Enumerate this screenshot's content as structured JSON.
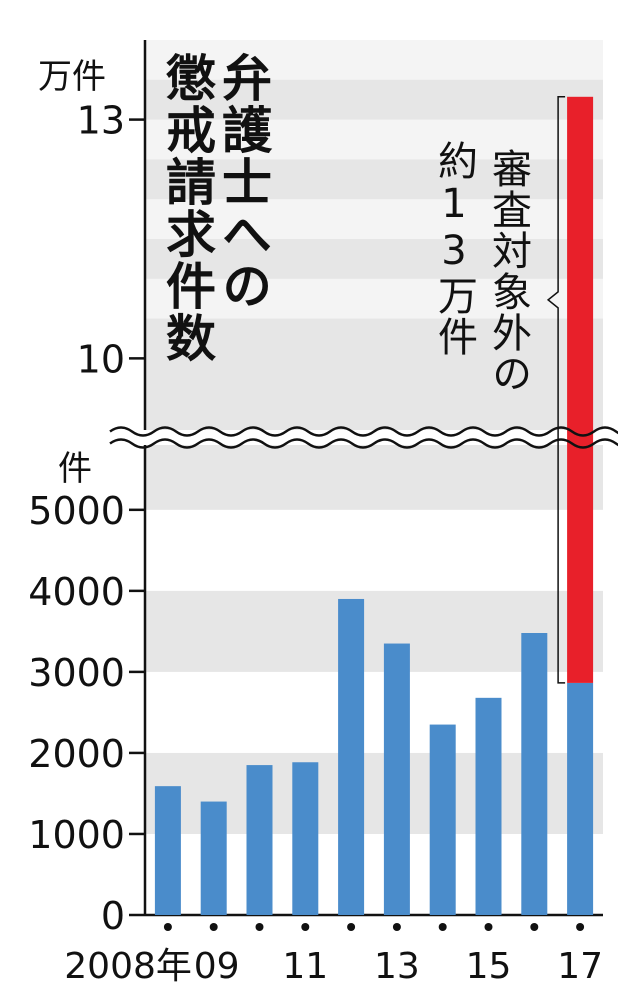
{
  "chart_data": {
    "type": "bar",
    "title": [
      "弁護士への",
      "懲戒請求件数"
    ],
    "upper_unit": "万件",
    "lower_unit": "件",
    "annotation": [
      "審査対象外の",
      "約13万件"
    ],
    "categories": [
      "2008年",
      "09",
      null,
      "11",
      null,
      "13",
      null,
      "15",
      null,
      "17"
    ],
    "series": [
      {
        "color": "#4a8ccb",
        "values": [
          1590,
          1400,
          1850,
          1885,
          3900,
          3350,
          2350,
          2680,
          3480,
          2864
        ]
      },
      {
        "color": "#e8202a",
        "values": [
          null,
          null,
          null,
          null,
          null,
          null,
          null,
          null,
          null,
          130000
        ]
      }
    ],
    "ylim": [
      0,
      5800
    ],
    "yticks": [
      0,
      1000,
      2000,
      3000,
      4000,
      5000
    ],
    "ylim_upper": [
      91000,
      140000
    ],
    "yticks_upper": [
      {
        "value": 100000,
        "label": "10"
      },
      {
        "value": 130000,
        "label": "13"
      }
    ],
    "stacked": true,
    "axis_break": true
  }
}
